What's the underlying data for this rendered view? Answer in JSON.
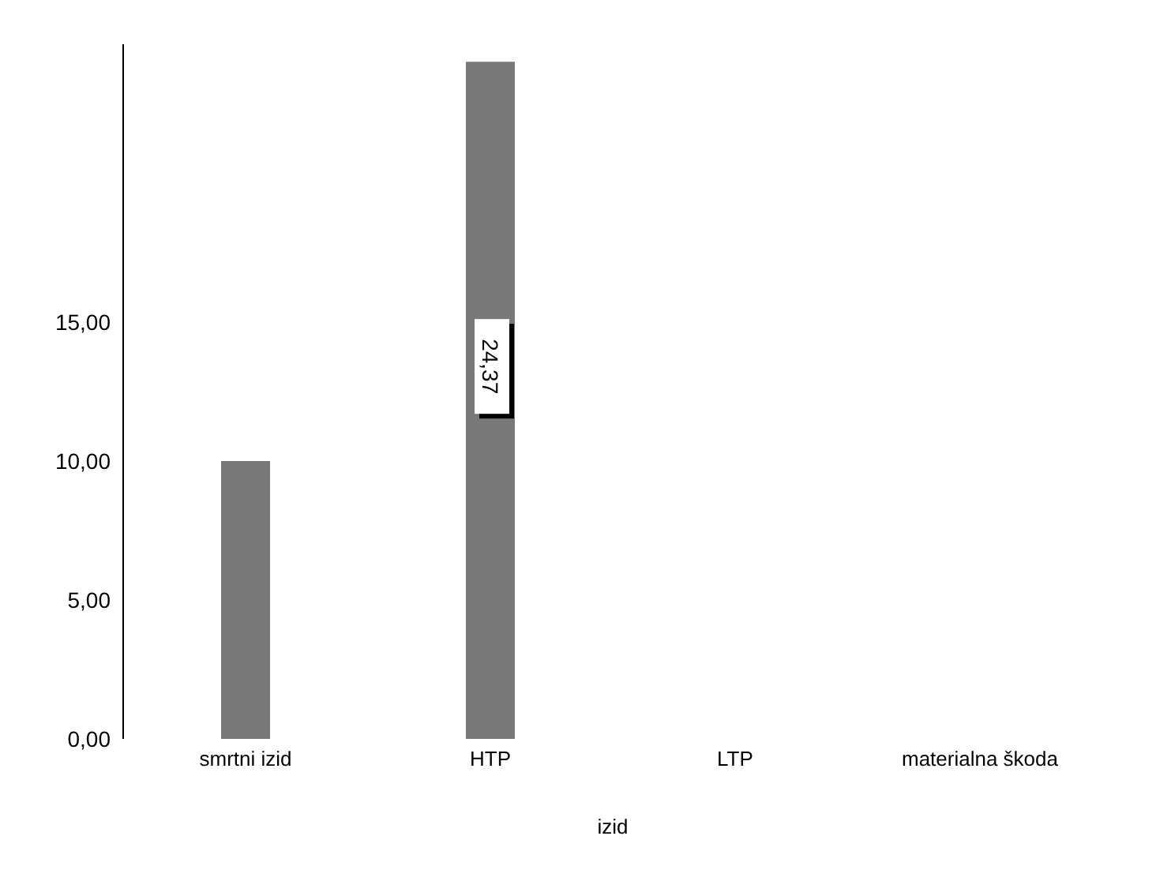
{
  "chart_data": {
    "type": "bar",
    "xlabel": "izid",
    "categories": [
      "smrtni  izid",
      "HTP",
      "LTP",
      "materialna  škoda"
    ],
    "values": [
      10,
      24.37,
      null,
      null
    ],
    "color": "#787878",
    "value_labels": [
      null,
      "24,37",
      null,
      null
    ],
    "ylim": [
      0,
      25
    ],
    "yticks": [
      {
        "value": 0,
        "label": "0,00"
      },
      {
        "value": 5,
        "label": "5,00"
      },
      {
        "value": 10,
        "label": "10,00"
      },
      {
        "value": 15,
        "label": "15,00"
      }
    ],
    "grid": false
  }
}
